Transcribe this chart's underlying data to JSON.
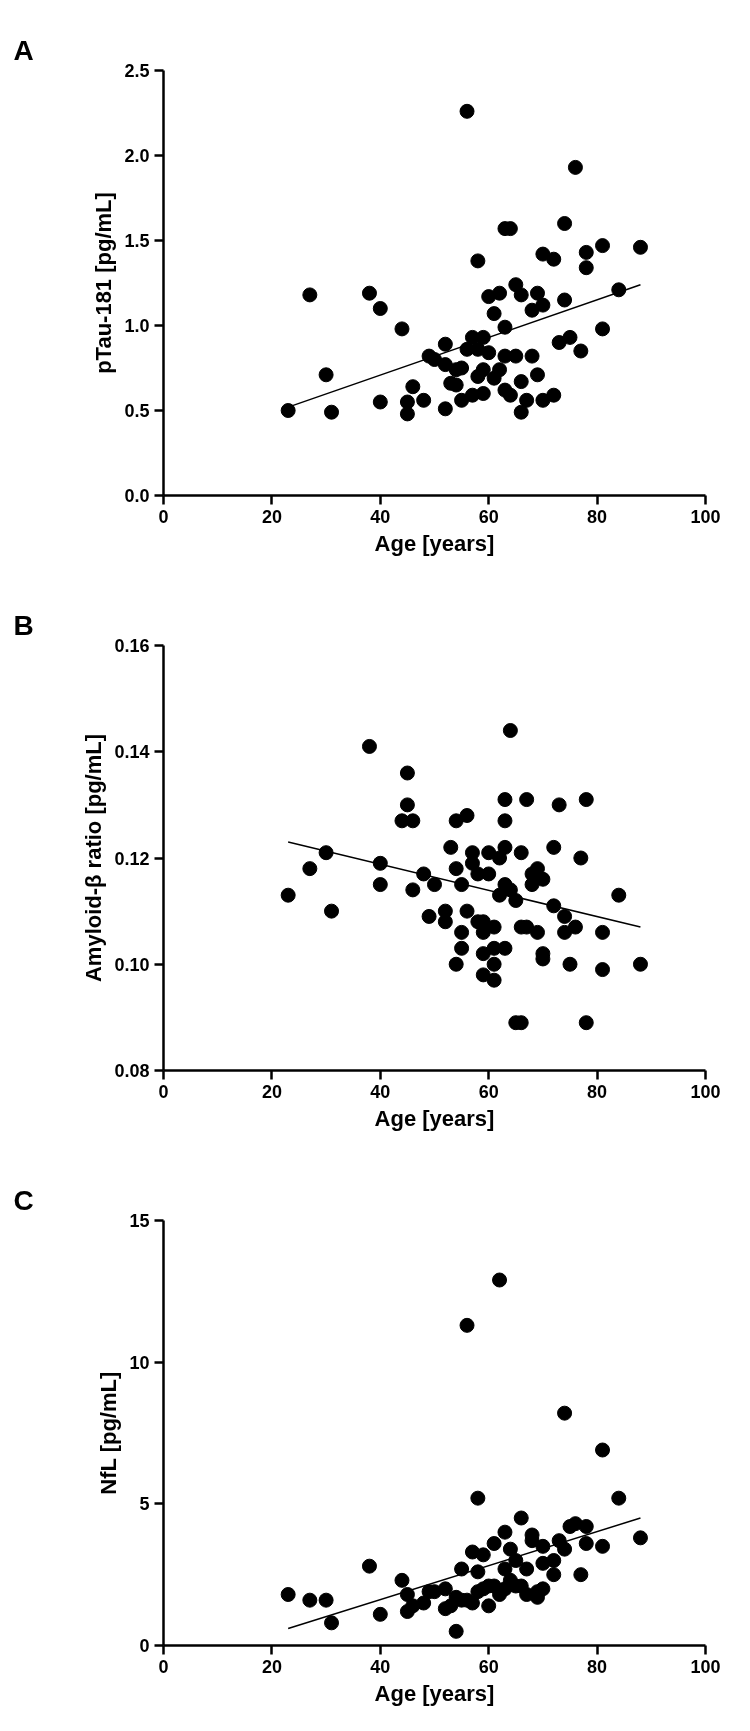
{
  "chart_data": [
    {
      "type": "scatter",
      "title": "A",
      "xlabel": "Age [years]",
      "ylabel": "pTau-181 [pg/mL]",
      "grid": false,
      "xlim": [
        0,
        100
      ],
      "xticks": [
        0,
        20,
        40,
        60,
        80,
        100
      ],
      "ylim": [
        0,
        2.5
      ],
      "yticks": [
        {
          "value": 0,
          "label": "0.0"
        },
        {
          "value": 0.5,
          "label": "0.5"
        },
        {
          "value": 1,
          "label": "1.0"
        },
        {
          "value": 1.5,
          "label": "1.5"
        },
        {
          "value": 2,
          "label": "2.0"
        },
        {
          "value": 2.5,
          "label": "2.5"
        }
      ],
      "series": [
        {
          "marker": "circle",
          "color": "#000000",
          "x": [
            23,
            27,
            30,
            31,
            38,
            40,
            40,
            44,
            45,
            45,
            46,
            48,
            49,
            50,
            52,
            52,
            52,
            53,
            54,
            54,
            55,
            55,
            56,
            56,
            57,
            57,
            58,
            58,
            58,
            59,
            59,
            59,
            60,
            60,
            61,
            61,
            62,
            62,
            63,
            64,
            63,
            63,
            63,
            64,
            65,
            65,
            66,
            66,
            66,
            67,
            68,
            68,
            69,
            69,
            70,
            70,
            70,
            72,
            72,
            73,
            74,
            74,
            75,
            76,
            77,
            78,
            78,
            81,
            81,
            84,
            88
          ],
          "values": [
            0.5,
            1.18,
            0.71,
            0.49,
            1.19,
            1.1,
            0.55,
            0.98,
            0.48,
            0.55,
            0.64,
            0.56,
            0.82,
            0.8,
            0.89,
            0.51,
            0.77,
            0.66,
            0.74,
            0.65,
            0.56,
            0.75,
            2.26,
            0.86,
            0.93,
            0.59,
            1.38,
            0.86,
            0.7,
            0.93,
            0.6,
            0.74,
            1.17,
            0.84,
            1.07,
            0.69,
            1.19,
            0.74,
            1.57,
            1.57,
            0.99,
            0.82,
            0.62,
            0.59,
            1.24,
            0.82,
            1.18,
            0.67,
            0.49,
            0.56,
            1.09,
            0.82,
            1.19,
            0.71,
            1.42,
            1.12,
            0.56,
            1.39,
            0.59,
            0.9,
            1.6,
            1.15,
            0.93,
            1.93,
            0.85,
            1.43,
            1.34,
            1.47,
            0.98,
            1.21,
            1.46
          ]
        },
        {
          "type": "line",
          "color": "#000000",
          "x": [
            23,
            88
          ],
          "values": [
            0.52,
            1.24
          ]
        }
      ]
    },
    {
      "type": "scatter",
      "title": "B",
      "xlabel": "Age [years]",
      "ylabel": "Amyloid-β ratio [pg/mL]",
      "grid": false,
      "xlim": [
        0,
        100
      ],
      "xticks": [
        0,
        20,
        40,
        60,
        80,
        100
      ],
      "ylim": [
        0.08,
        0.16
      ],
      "yticks": [
        {
          "value": 0.08,
          "label": "0.08"
        },
        {
          "value": 0.1,
          "label": "0.10"
        },
        {
          "value": 0.12,
          "label": "0.12"
        },
        {
          "value": 0.14,
          "label": "0.14"
        },
        {
          "value": 0.16,
          "label": "0.16"
        }
      ],
      "series": [
        {
          "marker": "circle",
          "color": "#000000",
          "x": [
            23,
            27,
            30,
            31,
            38,
            40,
            40,
            45,
            45,
            44,
            46,
            46,
            48,
            49,
            50,
            52,
            52,
            53,
            54,
            54,
            54,
            55,
            55,
            55,
            56,
            56,
            57,
            57,
            58,
            58,
            59,
            59,
            59,
            59,
            60,
            60,
            61,
            61,
            61,
            61,
            62,
            62,
            63,
            63,
            63,
            63,
            63,
            64,
            64,
            65,
            65,
            66,
            66,
            66,
            67,
            67,
            68,
            68,
            69,
            69,
            70,
            70,
            70,
            72,
            72,
            73,
            74,
            74,
            75,
            76,
            77,
            78,
            78,
            81,
            81,
            84,
            88
          ],
          "values": [
            0.113,
            0.118,
            0.121,
            0.11,
            0.141,
            0.119,
            0.115,
            0.136,
            0.13,
            0.127,
            0.127,
            0.114,
            0.117,
            0.109,
            0.115,
            0.11,
            0.108,
            0.122,
            0.127,
            0.118,
            0.1,
            0.115,
            0.106,
            0.103,
            0.128,
            0.11,
            0.121,
            0.119,
            0.117,
            0.108,
            0.108,
            0.106,
            0.102,
            0.098,
            0.121,
            0.117,
            0.107,
            0.103,
            0.1,
            0.097,
            0.12,
            0.113,
            0.131,
            0.127,
            0.122,
            0.115,
            0.103,
            0.144,
            0.114,
            0.112,
            0.089,
            0.107,
            0.121,
            0.089,
            0.131,
            0.107,
            0.117,
            0.115,
            0.118,
            0.106,
            0.116,
            0.102,
            0.101,
            0.122,
            0.111,
            0.13,
            0.109,
            0.106,
            0.1,
            0.107,
            0.12,
            0.131,
            0.089,
            0.106,
            0.099,
            0.113,
            0.1
          ]
        },
        {
          "type": "line",
          "color": "#000000",
          "x": [
            23,
            88
          ],
          "values": [
            0.123,
            0.107
          ]
        }
      ]
    },
    {
      "type": "scatter",
      "title": "C",
      "xlabel": "Age [years]",
      "ylabel": "NfL [pg/mL]",
      "grid": false,
      "xlim": [
        0,
        100
      ],
      "xticks": [
        0,
        20,
        40,
        60,
        80,
        100
      ],
      "ylim": [
        0,
        15
      ],
      "yticks": [
        0,
        5,
        10,
        15
      ],
      "series": [
        {
          "marker": "circle",
          "color": "#000000",
          "x": [
            23,
            27,
            30,
            31,
            38,
            40,
            44,
            45,
            45,
            46,
            48,
            49,
            50,
            52,
            52,
            53,
            54,
            54,
            55,
            55,
            56,
            56,
            57,
            57,
            58,
            58,
            58,
            59,
            59,
            60,
            60,
            61,
            61,
            62,
            62,
            63,
            63,
            63,
            64,
            64,
            65,
            65,
            66,
            66,
            67,
            67,
            68,
            68,
            69,
            69,
            70,
            70,
            70,
            72,
            72,
            73,
            74,
            74,
            75,
            76,
            77,
            78,
            78,
            81,
            81,
            84,
            88
          ],
          "values": [
            1.8,
            1.6,
            1.6,
            0.8,
            2.8,
            1.1,
            2.3,
            1.8,
            1.2,
            1.4,
            1.5,
            1.9,
            1.9,
            2.0,
            1.3,
            1.4,
            0.5,
            1.7,
            2.7,
            1.6,
            11.3,
            1.6,
            3.3,
            1.5,
            5.2,
            2.6,
            1.9,
            3.2,
            2.0,
            1.4,
            2.1,
            3.6,
            2.1,
            12.9,
            1.8,
            4.0,
            2.7,
            2.0,
            3.4,
            2.3,
            3.0,
            2.1,
            4.5,
            2.1,
            2.7,
            1.8,
            3.9,
            3.7,
            1.7,
            1.9,
            3.5,
            2.9,
            2.0,
            3.0,
            2.5,
            3.7,
            8.2,
            3.4,
            4.2,
            4.3,
            2.5,
            4.2,
            3.6,
            6.9,
            3.5,
            5.2,
            3.8
          ]
        },
        {
          "type": "line",
          "color": "#000000",
          "x": [
            23,
            88
          ],
          "values": [
            0.6,
            4.5
          ]
        }
      ]
    }
  ]
}
